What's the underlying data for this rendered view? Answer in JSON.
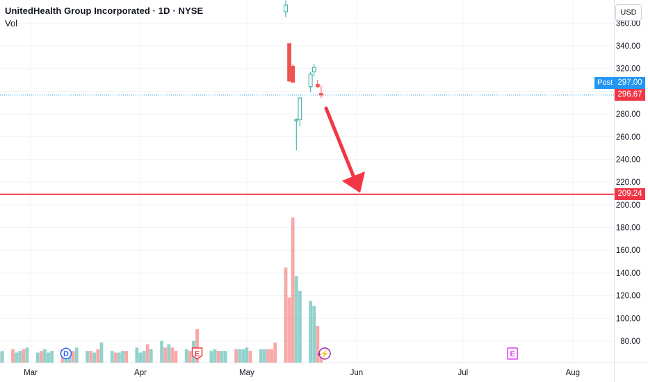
{
  "header": {
    "title": "UnitedHealth Group Incorporated · 1D · NYSE",
    "volume_label": "Vol"
  },
  "currency": "USD",
  "price_tags": {
    "post_label": "Post",
    "post_price": "297.00",
    "last_price": "296.67",
    "target_price": "209.24"
  },
  "colors": {
    "up": "#26a69a",
    "down": "#ef5350",
    "target_line": "#f23645",
    "post_line": "#2196f3"
  },
  "events": [
    {
      "type": "dividend",
      "letter": "D",
      "date": "2025-03-11",
      "color": "#2962ff"
    },
    {
      "type": "earnings",
      "letter": "E",
      "date": "2025-04-17",
      "color": "#f23645"
    },
    {
      "type": "spin",
      "letter": "⚡",
      "date": "2025-05-23",
      "color": "#9c27b0"
    },
    {
      "type": "earnings",
      "letter": "E",
      "date": "2025-07-15",
      "color": "#e040fb"
    }
  ],
  "chart_data": {
    "type": "candlestick",
    "x_axis": {
      "ticks": [
        "Mar",
        "Apr",
        "May",
        "Jun",
        "Jul",
        "Aug"
      ],
      "tick_dates": [
        "2025-03-01",
        "2025-04-01",
        "2025-05-01",
        "2025-06-01",
        "2025-07-01",
        "2025-08-01"
      ],
      "range": [
        "2025-02-18",
        "2025-08-25"
      ]
    },
    "y_axis": {
      "ticks": [
        80,
        100,
        120,
        140,
        160,
        180,
        200,
        220,
        240,
        260,
        280,
        300,
        320,
        340,
        360
      ],
      "visible_labels": [
        "80.00",
        "100.00",
        "120.00",
        "140.00",
        "160.00",
        "180.00",
        "200.00",
        "220.00",
        "240.00",
        "260.00",
        "280.00",
        "320.00",
        "340.00",
        "360.00"
      ],
      "range": [
        64,
        373
      ]
    },
    "candles": [
      {
        "date": "2025-05-12",
        "open": 370,
        "high": 380,
        "low": 365,
        "close": 376
      },
      {
        "date": "2025-05-13",
        "open": 342,
        "high": 342,
        "low": 308,
        "close": 309
      },
      {
        "date": "2025-05-14",
        "open": 322,
        "high": 324,
        "low": 307,
        "close": 308
      },
      {
        "date": "2025-05-15",
        "open": 274,
        "high": 276,
        "low": 248,
        "close": 275
      },
      {
        "date": "2025-05-16",
        "open": 275,
        "high": 295,
        "low": 269,
        "close": 294
      },
      {
        "date": "2025-05-19",
        "open": 304,
        "high": 317,
        "low": 299,
        "close": 315
      },
      {
        "date": "2025-05-20",
        "open": 317,
        "high": 324,
        "low": 313,
        "close": 321
      },
      {
        "date": "2025-05-21",
        "open": 306,
        "high": 310,
        "low": 303,
        "close": 304
      },
      {
        "date": "2025-05-22",
        "open": 298,
        "high": 305,
        "low": 294,
        "close": 296.67
      }
    ],
    "volume": {
      "dates": [
        "2025-02-18",
        "2025-02-19",
        "2025-02-20",
        "2025-02-21",
        "2025-02-24",
        "2025-02-25",
        "2025-02-26",
        "2025-02-27",
        "2025-02-28",
        "2025-03-03",
        "2025-03-04",
        "2025-03-05",
        "2025-03-06",
        "2025-03-07",
        "2025-03-10",
        "2025-03-11",
        "2025-03-12",
        "2025-03-13",
        "2025-03-14",
        "2025-03-17",
        "2025-03-18",
        "2025-03-19",
        "2025-03-20",
        "2025-03-21",
        "2025-03-24",
        "2025-03-25",
        "2025-03-26",
        "2025-03-27",
        "2025-03-28",
        "2025-03-31",
        "2025-04-01",
        "2025-04-02",
        "2025-04-03",
        "2025-04-04",
        "2025-04-07",
        "2025-04-08",
        "2025-04-09",
        "2025-04-10",
        "2025-04-11",
        "2025-04-14",
        "2025-04-15",
        "2025-04-16",
        "2025-04-17",
        "2025-04-21",
        "2025-04-22",
        "2025-04-23",
        "2025-04-24",
        "2025-04-25",
        "2025-04-28",
        "2025-04-29",
        "2025-04-30",
        "2025-05-01",
        "2025-05-02",
        "2025-05-05",
        "2025-05-06",
        "2025-05-07",
        "2025-05-08",
        "2025-05-09",
        "2025-05-12",
        "2025-05-13",
        "2025-05-14",
        "2025-05-15",
        "2025-05-16",
        "2025-05-19",
        "2025-05-20",
        "2025-05-21",
        "2025-05-22"
      ],
      "values": [
        14,
        8,
        6,
        7,
        8,
        6,
        7,
        8,
        9,
        6,
        7,
        8,
        6,
        7,
        8,
        9,
        6,
        7,
        9,
        7,
        7,
        6,
        8,
        12,
        7,
        6,
        6,
        7,
        7,
        9,
        6,
        7,
        11,
        8,
        13,
        9,
        11,
        9,
        7,
        8,
        7,
        13,
        20,
        7,
        8,
        7,
        7,
        7,
        8,
        8,
        8,
        9,
        7,
        8,
        8,
        8,
        8,
        12,
        57,
        39,
        87,
        52,
        43,
        37,
        34,
        22,
        6
      ],
      "directions": [
        "up",
        "up",
        "down",
        "up",
        "down",
        "up",
        "up",
        "down",
        "up",
        "up",
        "down",
        "up",
        "up",
        "up",
        "down",
        "up",
        "up",
        "down",
        "up",
        "up",
        "down",
        "up",
        "down",
        "up",
        "up",
        "down",
        "up",
        "up",
        "down",
        "up",
        "up",
        "up",
        "down",
        "up",
        "up",
        "down",
        "up",
        "down",
        "down",
        "up",
        "down",
        "up",
        "down",
        "up",
        "up",
        "down",
        "up",
        "up",
        "down",
        "up",
        "up",
        "up",
        "down",
        "up",
        "up",
        "down",
        "down",
        "down",
        "down",
        "down",
        "down",
        "up",
        "up",
        "up",
        "up",
        "down",
        "down"
      ]
    },
    "annotations": [
      {
        "type": "horizontal_line",
        "price": 209.24
      },
      {
        "type": "horizontal_line",
        "price": 296.67,
        "style": "dotted"
      },
      {
        "type": "arrow",
        "from": {
          "date": "2025-05-23",
          "price": 285
        },
        "to": {
          "date": "2025-06-02",
          "price": 209.24
        }
      }
    ]
  }
}
